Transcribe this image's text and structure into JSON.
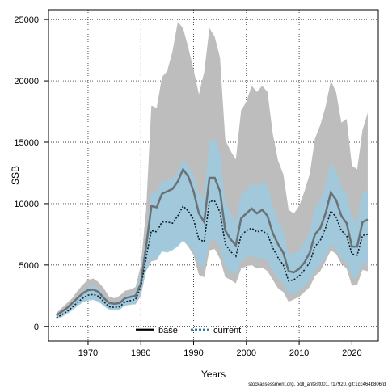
{
  "chart_data": {
    "type": "line",
    "xlabel": "Years",
    "ylabel": "SSB",
    "xlim": [
      1962.5,
      2025
    ],
    "ylim": [
      -1200,
      25800
    ],
    "xticks": [
      1970,
      1980,
      1990,
      2000,
      2010,
      2020
    ],
    "yticks": [
      0,
      5000,
      10000,
      15000,
      20000,
      25000
    ],
    "grid": true,
    "legend_position": "bottom-center",
    "footnote": "stockassessment.org, poll_antest001, r17920, git:1cc464b806fd",
    "x": [
      1964,
      1965,
      1966,
      1967,
      1968,
      1969,
      1970,
      1971,
      1972,
      1973,
      1974,
      1975,
      1976,
      1977,
      1978,
      1979,
      1980,
      1981,
      1982,
      1983,
      1984,
      1985,
      1986,
      1987,
      1988,
      1989,
      1990,
      1991,
      1992,
      1993,
      1994,
      1995,
      1996,
      1997,
      1998,
      1999,
      2000,
      2001,
      2002,
      2003,
      2004,
      2005,
      2006,
      2007,
      2008,
      2009,
      2010,
      2011,
      2012,
      2013,
      2014,
      2015,
      2016,
      2017,
      2018,
      2019,
      2020,
      2021,
      2022,
      2023
    ],
    "series": [
      {
        "name": "base",
        "color": "#555555",
        "values": [
          900,
          1200,
          1500,
          1900,
          2300,
          2700,
          2950,
          3000,
          2800,
          2300,
          1900,
          1850,
          1900,
          2300,
          2400,
          2500,
          3500,
          6500,
          9800,
          9700,
          10800,
          11000,
          11200,
          11800,
          12800,
          12200,
          11000,
          9200,
          8500,
          12100,
          12100,
          11000,
          7800,
          7100,
          6600,
          8800,
          9200,
          9600,
          9200,
          9500,
          9000,
          7600,
          6700,
          6000,
          4500,
          4400,
          4700,
          5200,
          6000,
          7500,
          8000,
          9200,
          10900,
          10300,
          9000,
          8400,
          6500,
          6500,
          8500,
          8700
        ],
        "lower": [
          700,
          900,
          1100,
          1500,
          1800,
          2000,
          2200,
          2200,
          2000,
          1700,
          1400,
          1400,
          1400,
          1700,
          1800,
          1800,
          2500,
          4500,
          5300,
          5400,
          6200,
          6200,
          6300,
          6600,
          7000,
          6500,
          5800,
          4200,
          4000,
          6200,
          6300,
          5500,
          4000,
          3800,
          3500,
          4700,
          4900,
          5000,
          4700,
          4800,
          4500,
          3800,
          3100,
          2800,
          2000,
          2200,
          2400,
          2800,
          3200,
          4100,
          4500,
          5300,
          6200,
          5900,
          5100,
          4700,
          3300,
          3400,
          4600,
          4500
        ],
        "upper": [
          1100,
          1500,
          1900,
          2300,
          2900,
          3400,
          3800,
          3900,
          3600,
          3100,
          2400,
          2300,
          2500,
          2900,
          3000,
          3200,
          5000,
          9500,
          18000,
          17800,
          20300,
          20800,
          22400,
          24800,
          24300,
          22700,
          20900,
          18900,
          20700,
          24300,
          23600,
          21900,
          15200,
          14300,
          13600,
          17600,
          18300,
          19600,
          19100,
          19600,
          19100,
          15700,
          13500,
          12400,
          9500,
          9200,
          9800,
          11000,
          12400,
          15300,
          16400,
          17900,
          20000,
          19100,
          16600,
          16900,
          13100,
          12800,
          16000,
          17400
        ]
      },
      {
        "name": "current",
        "color": "#1f78a4",
        "values": [
          700,
          950,
          1200,
          1550,
          1950,
          2300,
          2550,
          2600,
          2450,
          2000,
          1600,
          1550,
          1600,
          2000,
          2100,
          2200,
          3200,
          5600,
          7800,
          7700,
          8500,
          8500,
          8400,
          9000,
          9800,
          9400,
          8700,
          7100,
          6900,
          10200,
          10200,
          9300,
          6700,
          6100,
          5700,
          7400,
          7800,
          8000,
          7700,
          7800,
          7500,
          6400,
          5600,
          5000,
          3700,
          3800,
          4100,
          4600,
          5200,
          6500,
          7000,
          8000,
          9400,
          8900,
          7800,
          7400,
          5900,
          5800,
          7400,
          7500
        ],
        "lower": [
          550,
          750,
          1000,
          1300,
          1650,
          1950,
          2100,
          2150,
          2000,
          1650,
          1350,
          1300,
          1350,
          1700,
          1750,
          1850,
          2700,
          4500,
          5500,
          5400,
          6100,
          6000,
          6200,
          6500,
          7000,
          6600,
          6100,
          5000,
          4800,
          6900,
          7100,
          6500,
          4800,
          4500,
          4200,
          5300,
          5600,
          5800,
          5500,
          5600,
          5300,
          4500,
          3900,
          3500,
          2600,
          2700,
          2900,
          3300,
          3700,
          4600,
          5000,
          5700,
          6700,
          6300,
          5500,
          5200,
          4000,
          4000,
          5100,
          5000
        ],
        "upper": [
          900,
          1200,
          1500,
          1900,
          2350,
          2800,
          3200,
          3300,
          3100,
          2500,
          2000,
          1950,
          2000,
          2500,
          2600,
          2800,
          4200,
          7200,
          11000,
          10900,
          11800,
          11900,
          12000,
          12600,
          13600,
          13100,
          12300,
          10800,
          10500,
          15100,
          15300,
          14200,
          10100,
          9300,
          8500,
          10800,
          11000,
          11700,
          11400,
          11800,
          11500,
          9900,
          8600,
          7800,
          5900,
          5900,
          6200,
          6900,
          7700,
          9600,
          10300,
          11400,
          13400,
          12700,
          11300,
          10800,
          8800,
          8600,
          10800,
          11100
        ]
      }
    ]
  }
}
